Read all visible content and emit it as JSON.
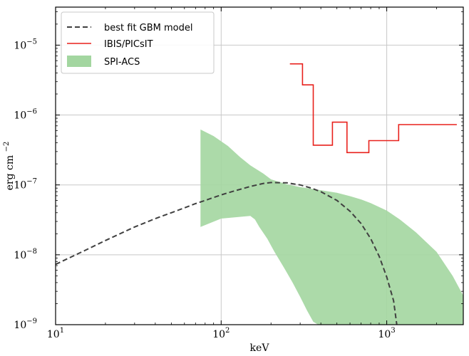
{
  "chart_data": {
    "type": "line",
    "xlabel": "keV",
    "ylabel": "erg cm",
    "ylabel_sup": "−2",
    "xscale": "log",
    "yscale": "log",
    "xlim": [
      10,
      2900
    ],
    "ylim": [
      1e-09,
      3.5e-05
    ],
    "grid": true,
    "legend_position": "top-left",
    "x_ticks": [
      {
        "value": 10,
        "base": "10",
        "exp": "1"
      },
      {
        "value": 100,
        "base": "10",
        "exp": "2"
      },
      {
        "value": 1000,
        "base": "10",
        "exp": "3"
      }
    ],
    "y_ticks": [
      {
        "value": 1e-09,
        "base": "10",
        "exp": "−9"
      },
      {
        "value": 1e-08,
        "base": "10",
        "exp": "−8"
      },
      {
        "value": 1e-07,
        "base": "10",
        "exp": "−7"
      },
      {
        "value": 1e-06,
        "base": "10",
        "exp": "−6"
      },
      {
        "value": 1e-05,
        "base": "10",
        "exp": "−5"
      }
    ],
    "series": [
      {
        "name": "best fit GBM model",
        "style": "dashed",
        "color": "#404040",
        "x": [
          10,
          15,
          20,
          30,
          40,
          50,
          60,
          70,
          80,
          100,
          120,
          150,
          180,
          200,
          250,
          300,
          350,
          400,
          500,
          600,
          700,
          800,
          900,
          1000,
          1100,
          1150
        ],
        "y": [
          7.3e-09,
          1.15e-08,
          1.6e-08,
          2.5e-08,
          3.3e-08,
          4e-08,
          4.7e-08,
          5.4e-08,
          6e-08,
          7.2e-08,
          8.2e-08,
          9.5e-08,
          1.05e-07,
          1.08e-07,
          1.07e-07,
          1e-07,
          9e-08,
          8e-08,
          6e-08,
          4.2e-08,
          2.8e-08,
          1.7e-08,
          9.5e-09,
          4.8e-09,
          2.2e-09,
          1e-09
        ]
      },
      {
        "name": "IBIS/PICsIT",
        "style": "step",
        "color": "#e8211c",
        "x": [
          260,
          310,
          310,
          360,
          360,
          470,
          470,
          575,
          575,
          780,
          780,
          1180,
          1180,
          2650
        ],
        "y": [
          5.4e-06,
          5.4e-06,
          2.7e-06,
          2.7e-06,
          3.7e-07,
          3.7e-07,
          7.9e-07,
          7.9e-07,
          2.9e-07,
          2.9e-07,
          4.3e-07,
          4.3e-07,
          7.3e-07,
          7.3e-07
        ]
      },
      {
        "name": "SPI-ACS",
        "style": "band",
        "color": "#a3d6a0",
        "x_upper": [
          75,
          90,
          110,
          130,
          150,
          180,
          200,
          250,
          300,
          350,
          400,
          500,
          600,
          700,
          800,
          1000,
          1200,
          1500,
          2000,
          2500,
          2900
        ],
        "y_upper": [
          6.2e-07,
          5e-07,
          3.6e-07,
          2.5e-07,
          1.9e-07,
          1.45e-07,
          1.2e-07,
          1.02e-07,
          9.3e-08,
          8.8e-08,
          8.4e-08,
          7.7e-08,
          6.9e-08,
          6.2e-08,
          5.5e-08,
          4.3e-08,
          3.2e-08,
          2.1e-08,
          1.1e-08,
          5e-09,
          2.6e-09
        ],
        "x_lower": [
          75,
          100,
          150,
          160,
          170,
          190,
          210,
          240,
          270,
          300,
          330,
          360,
          385
        ],
        "y_lower": [
          2.5e-08,
          3.3e-08,
          3.6e-08,
          3.2e-08,
          2.5e-08,
          1.7e-08,
          1.1e-08,
          6.5e-09,
          4e-09,
          2.5e-09,
          1.6e-09,
          1.1e-09,
          1e-09
        ]
      }
    ]
  }
}
